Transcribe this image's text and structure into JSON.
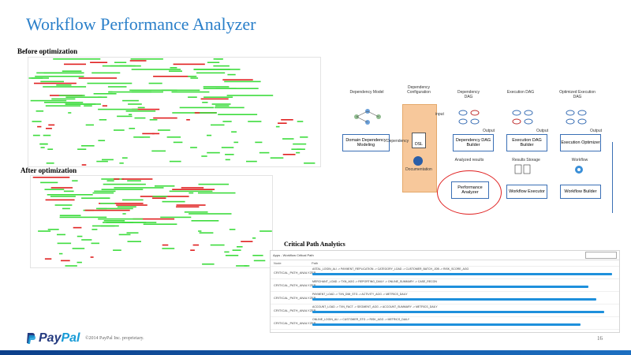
{
  "slide": {
    "title": "Workflow Performance Analyzer",
    "before_label": "Before optimization",
    "after_label": "After optimization",
    "critical_label": "Critical Path Analytics",
    "page_number": "16"
  },
  "footer": {
    "brand_pay": "Pay",
    "brand_pal": "Pal",
    "copyright": "©2014 PayPal Inc. proprietary."
  },
  "diagram": {
    "dep_model_label": "Dependency Model",
    "dep_config_label": "Dependency Configuration",
    "dep_dag_label": "Dependency DAG",
    "exec_dag_label": "Execution DAG",
    "opt_exec_dag_label": "Optimized Execution DAG",
    "input_left": "input",
    "output_1": "Output",
    "output_2": "Output",
    "output_3": "Output",
    "analyzed_results": "Analyzed results",
    "results_storage": "Results Storage",
    "workflow_label": "Workflow",
    "box_domain_modeling": "Domain Dependency Modeling",
    "box_dep_builder": "Dependency DAG Builder",
    "box_exec_builder": "Execution DAG Builder",
    "box_exec_optimizer": "Execution Optimizer",
    "box_perf_analyzer": "Performance Analyzer",
    "box_wf_executor": "Workflow Executor",
    "box_wf_builder": "Workflow Builder",
    "dsl_label": "DSL",
    "doc_label": "Documentation",
    "dependency_arrow": "Dependency"
  },
  "critical_path": {
    "header": "Apps - Workflow Critical Path",
    "columns": [
      "Node",
      "Path"
    ],
    "rows": [
      {
        "node": "CRITICAL_PATH_ANALYZER",
        "text": "ASTAL_LOGIN_ALI -> PAYMENT_REPLICATION -> CATEGORY_LOAD -> CUSTOMER_BATCH_JOB -> RISK_SCORE_AGG"
      },
      {
        "node": "CRITICAL_PATH_ANALYZER",
        "text": "MERCHANT_LOAD -> TXN_AGG -> REPORTING_DAILY -> ONLINE_SUMMARY -> CASE_RECON"
      },
      {
        "node": "CRITICAL_PATH_ANALYZER",
        "text": "PAYMENT_LOAD -> TXN_DIM_STG -> ACTIVITY_AGG -> METRICS_DAILY"
      },
      {
        "node": "CRITICAL_PATH_ANALYZER",
        "text": "ACCOUNT_LOAD -> TXN_FACT -> SEGMENT_AGG -> ACCOUNT_SUMMARY -> METRICS_DAILY"
      },
      {
        "node": "CRITICAL_PATH_ANALYZER",
        "text": "ONLINE_LOGIN_ALI -> CUSTOMER_STG -> RISK_AGG -> METRICS_DAILY"
      }
    ]
  },
  "colors": {
    "title": "#2a7fc9",
    "bar_green": "#3ddc3d",
    "bar_red": "#e02020",
    "bar_blue": "#1e90dc",
    "highlight_circle": "#e02020",
    "panel_orange": "#f7c89b"
  }
}
